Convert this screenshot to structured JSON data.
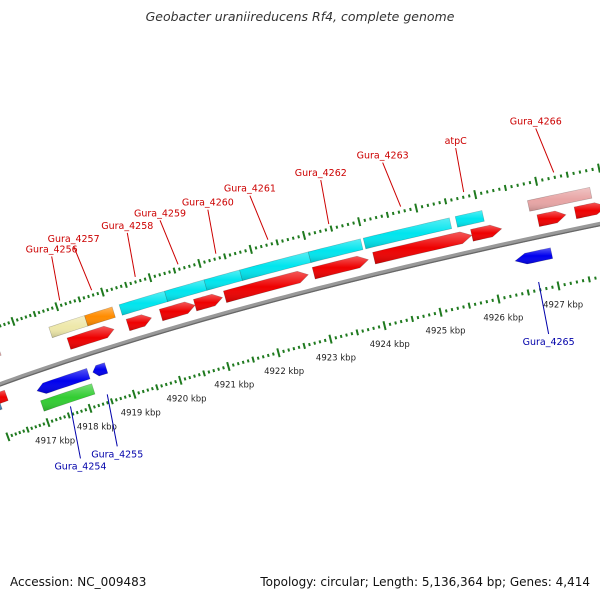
{
  "header": {
    "title": "Geobacter uraniireducens Rf4, complete genome"
  },
  "footer": {
    "accession": "Accession: NC_009483",
    "summary": "Topology: circular; Length: 5,136,364 bp; Genes: 4,414"
  },
  "genome_map": {
    "position_unit": "kbp",
    "visible_window_kbp": [
      4916.2,
      4927.6
    ],
    "colors": {
      "backbone": "#888888",
      "tick": "#1f7a1f",
      "forward_label": "#cc0000",
      "reverse_label": "#0000aa"
    },
    "scale_labels": [
      {
        "kbp": 4917,
        "text": "4917 kbp"
      },
      {
        "kbp": 4918,
        "text": "4918 kbp"
      },
      {
        "kbp": 4919,
        "text": "4919 kbp"
      },
      {
        "kbp": 4920,
        "text": "4920 kbp"
      },
      {
        "kbp": 4921,
        "text": "4921 kbp"
      },
      {
        "kbp": 4922,
        "text": "4922 kbp"
      },
      {
        "kbp": 4923,
        "text": "4923 kbp"
      },
      {
        "kbp": 4924,
        "text": "4924 kbp"
      },
      {
        "kbp": 4925,
        "text": "4925 kbp"
      },
      {
        "kbp": 4926,
        "text": "4926 kbp"
      },
      {
        "kbp": 4927,
        "text": "4927 kbp"
      }
    ],
    "forward_genes": [
      {
        "label": "",
        "start": 4916.1,
        "end": 4916.5,
        "cog": "#e8a5a5"
      },
      {
        "label": "Gura_4256",
        "start": 4917.7,
        "end": 4918.5,
        "cog": "#eee8aa"
      },
      {
        "label": "Gura_4257",
        "start": 4918.5,
        "end": 4919.1,
        "cog": "#ff8c00"
      },
      {
        "label": "Gura_4258",
        "start": 4919.25,
        "end": 4920.2,
        "cog": "#00e5ee"
      },
      {
        "label": "Gura_4259",
        "start": 4920.2,
        "end": 4921.0,
        "cog": "#00e5ee"
      },
      {
        "label": "Gura_4260",
        "start": 4921.0,
        "end": 4921.7,
        "cog": "#00e5ee"
      },
      {
        "label": "Gura_4261",
        "start": 4921.7,
        "end": 4923.0,
        "cog": "#00e5ee"
      },
      {
        "label": "Gura_4262",
        "start": 4923.0,
        "end": 4923.95,
        "cog": "#00e5ee"
      },
      {
        "label": "Gura_4263",
        "start": 4924.0,
        "end": 4925.5,
        "cog": "#00e5ee"
      },
      {
        "label": "atpC",
        "start": 4925.6,
        "end": 4926.05,
        "cog": "#00e5ee"
      },
      {
        "label": "Gura_4266",
        "start": 4926.8,
        "end": 4927.8,
        "cog": "#e8a5a5"
      }
    ],
    "reverse_genes": [
      {
        "label": "",
        "start": 4916.0,
        "end": 4916.1,
        "cog": "#4682b4"
      },
      {
        "label": "Gura_4254",
        "start": 4917.0,
        "end": 4918.2,
        "cog": "#0000ee",
        "cog2": "#32cd32"
      },
      {
        "label": "Gura_4255",
        "start": 4918.3,
        "end": 4918.6,
        "cog": "#0000ee"
      },
      {
        "label": "Gura_4265",
        "start": 4926.4,
        "end": 4927.0,
        "cog": "#0000ee"
      }
    ],
    "orf_forward_red": [
      {
        "start": 4918.0,
        "end": 4919.0
      },
      {
        "start": 4919.3,
        "end": 4919.8
      },
      {
        "start": 4920.0,
        "end": 4920.7
      },
      {
        "start": 4920.7,
        "end": 4921.25
      },
      {
        "start": 4921.3,
        "end": 4922.9
      },
      {
        "start": 4923.0,
        "end": 4924.0
      },
      {
        "start": 4924.1,
        "end": 4925.8
      },
      {
        "start": 4925.8,
        "end": 4926.3
      },
      {
        "start": 4926.9,
        "end": 4927.35
      },
      {
        "start": 4927.5,
        "end": 4928.0
      }
    ],
    "orf_reverse_red": [
      {
        "start": 4915.9,
        "end": 4916.3
      }
    ]
  }
}
